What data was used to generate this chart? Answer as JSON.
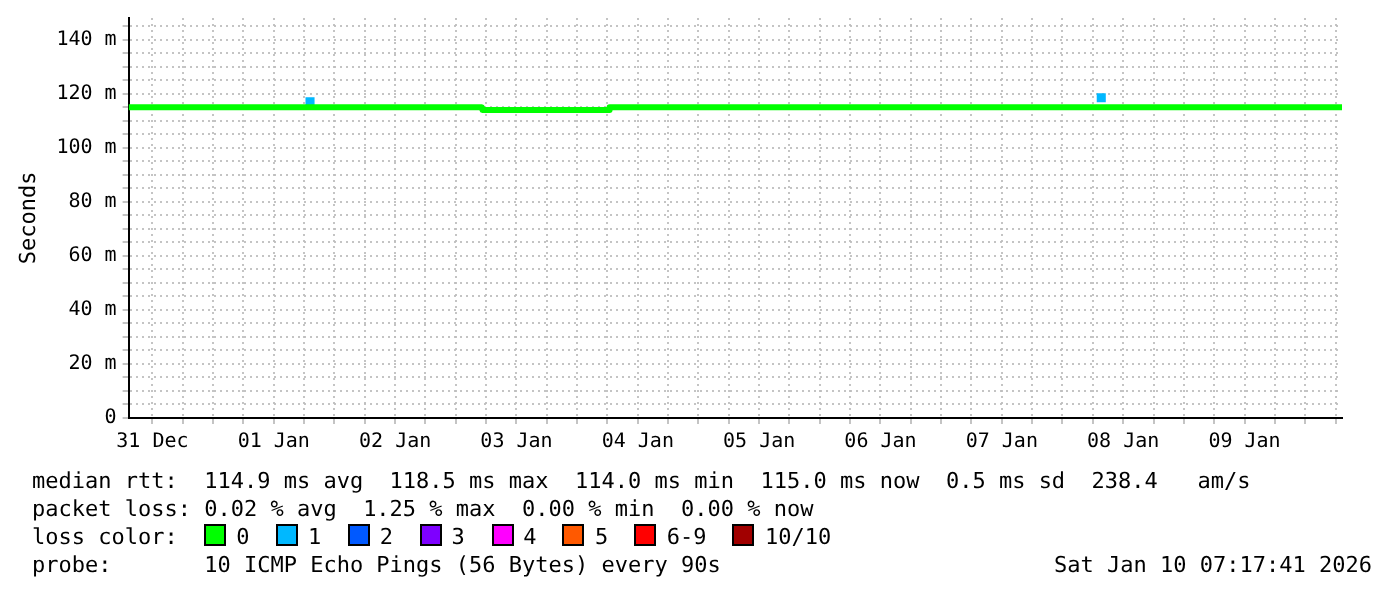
{
  "chart_data": {
    "type": "line",
    "ylabel": "Seconds",
    "legend_title": "loss color:",
    "xlim": [
      "2025-12-31T07:17",
      "2026-01-10T07:17"
    ],
    "xticks": [
      {
        "value": "2025-12-31T12:00",
        "label": "31 Dec"
      },
      {
        "value": "2025-12-31T18:00",
        "label": null
      },
      {
        "value": "2026-01-01T00:00",
        "label": null
      },
      {
        "value": "2026-01-01T06:00",
        "label": null
      },
      {
        "value": "2026-01-01T12:00",
        "label": "01 Jan"
      },
      {
        "value": "2026-01-01T18:00",
        "label": null
      },
      {
        "value": "2026-01-02T00:00",
        "label": null
      },
      {
        "value": "2026-01-02T06:00",
        "label": null
      },
      {
        "value": "2026-01-02T12:00",
        "label": "02 Jan"
      },
      {
        "value": "2026-01-02T18:00",
        "label": null
      },
      {
        "value": "2026-01-03T00:00",
        "label": null
      },
      {
        "value": "2026-01-03T06:00",
        "label": null
      },
      {
        "value": "2026-01-03T12:00",
        "label": "03 Jan"
      },
      {
        "value": "2026-01-03T18:00",
        "label": null
      },
      {
        "value": "2026-01-04T00:00",
        "label": null
      },
      {
        "value": "2026-01-04T06:00",
        "label": null
      },
      {
        "value": "2026-01-04T12:00",
        "label": "04 Jan"
      },
      {
        "value": "2026-01-04T18:00",
        "label": null
      },
      {
        "value": "2026-01-05T00:00",
        "label": null
      },
      {
        "value": "2026-01-05T06:00",
        "label": null
      },
      {
        "value": "2026-01-05T12:00",
        "label": "05 Jan"
      },
      {
        "value": "2026-01-05T18:00",
        "label": null
      },
      {
        "value": "2026-01-06T00:00",
        "label": null
      },
      {
        "value": "2026-01-06T06:00",
        "label": null
      },
      {
        "value": "2026-01-06T12:00",
        "label": "06 Jan"
      },
      {
        "value": "2026-01-06T18:00",
        "label": null
      },
      {
        "value": "2026-01-07T00:00",
        "label": null
      },
      {
        "value": "2026-01-07T06:00",
        "label": null
      },
      {
        "value": "2026-01-07T12:00",
        "label": "07 Jan"
      },
      {
        "value": "2026-01-07T18:00",
        "label": null
      },
      {
        "value": "2026-01-08T00:00",
        "label": null
      },
      {
        "value": "2026-01-08T06:00",
        "label": null
      },
      {
        "value": "2026-01-08T12:00",
        "label": "08 Jan"
      },
      {
        "value": "2026-01-08T18:00",
        "label": null
      },
      {
        "value": "2026-01-09T00:00",
        "label": null
      },
      {
        "value": "2026-01-09T06:00",
        "label": null
      },
      {
        "value": "2026-01-09T12:00",
        "label": "09 Jan"
      },
      {
        "value": "2026-01-09T18:00",
        "label": null
      },
      {
        "value": "2026-01-10T00:00",
        "label": null
      },
      {
        "value": "2026-01-10T06:00",
        "label": null
      }
    ],
    "ylim": [
      0,
      148
    ],
    "yticks": [
      {
        "value": 0,
        "label": "0"
      },
      {
        "value": 5,
        "label": null
      },
      {
        "value": 10,
        "label": null
      },
      {
        "value": 15,
        "label": null
      },
      {
        "value": 20,
        "label": "20 m"
      },
      {
        "value": 25,
        "label": null
      },
      {
        "value": 30,
        "label": null
      },
      {
        "value": 35,
        "label": null
      },
      {
        "value": 40,
        "label": "40 m"
      },
      {
        "value": 45,
        "label": null
      },
      {
        "value": 50,
        "label": null
      },
      {
        "value": 55,
        "label": null
      },
      {
        "value": 60,
        "label": "60 m"
      },
      {
        "value": 65,
        "label": null
      },
      {
        "value": 70,
        "label": null
      },
      {
        "value": 75,
        "label": null
      },
      {
        "value": 80,
        "label": "80 m"
      },
      {
        "value": 85,
        "label": null
      },
      {
        "value": 90,
        "label": null
      },
      {
        "value": 95,
        "label": null
      },
      {
        "value": 100,
        "label": "100 m"
      },
      {
        "value": 105,
        "label": null
      },
      {
        "value": 110,
        "label": null
      },
      {
        "value": 115,
        "label": null
      },
      {
        "value": 120,
        "label": "120 m"
      },
      {
        "value": 125,
        "label": null
      },
      {
        "value": 130,
        "label": null
      },
      {
        "value": 135,
        "label": null
      },
      {
        "value": 140,
        "label": "140 m"
      },
      {
        "value": 145,
        "label": null
      }
    ],
    "grid": true,
    "legend": "bottom",
    "series": [
      {
        "name": "0",
        "color": "#00ff00",
        "x": [
          "2025-12-31T07:17",
          "2026-01-03T05:10",
          "2026-01-03T05:15",
          "2026-01-04T06:20",
          "2026-01-04T06:25",
          "2026-01-10T07:17"
        ],
        "values": [
          115,
          115,
          114,
          114,
          115,
          115
        ]
      },
      {
        "name": "1",
        "type": "scatter",
        "marker": "square",
        "color": "#00b8ff",
        "x": [
          "2026-01-01T19:10",
          "2026-01-08T07:40"
        ],
        "values": [
          117,
          118.5
        ]
      },
      {
        "name": "2",
        "type": "scatter",
        "color": "#0059ff"
      },
      {
        "name": "3",
        "type": "scatter",
        "color": "#7e00ff"
      },
      {
        "name": "4",
        "type": "scatter",
        "color": "#ff00ff"
      },
      {
        "name": "5",
        "type": "scatter",
        "color": "#ff5900"
      },
      {
        "name": "6-9",
        "type": "scatter",
        "color": "#ff0000"
      },
      {
        "name": "10/10",
        "type": "scatter",
        "color": "#a10000"
      }
    ],
    "annotations": [
      "median rtt:  114.9 ms avg  118.5 ms max  114.0 ms min  115.0 ms now  0.5 ms sd  238.4   am/s",
      "packet loss: 0.02 % avg  1.25 % max  0.00 % min  0.00 % now",
      "probe:       10 ICMP Echo Pings (56 Bytes) every 90s",
      "Sat Jan 10 07:17:41 2026"
    ]
  }
}
